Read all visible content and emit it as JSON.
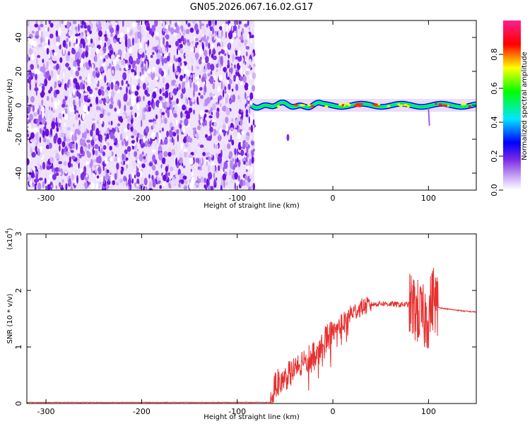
{
  "title": "GN05.2026.067.16.02.G17",
  "colorbar": {
    "label": "Normalized spectral amplitude",
    "ticks": [
      "0.0",
      "0.2",
      "0.4",
      "0.6",
      "0.8"
    ]
  },
  "chart_data": [
    {
      "type": "heatmap",
      "name": "spectrogram",
      "xlabel": "Height of straight line (km)",
      "ylabel": "Frequency (Hz)",
      "xlim": [
        -320,
        150
      ],
      "ylim": [
        -50,
        50
      ],
      "xticks": [
        "-300",
        "-200",
        "-100",
        "0",
        "100"
      ],
      "yticks": [
        "-40",
        "-20",
        "0",
        "20",
        "40"
      ],
      "colorscale": [
        "#ffffff",
        "#8a2be2",
        "#0000ff",
        "#00ffff",
        "#00ff00",
        "#ffff00",
        "#ff0000",
        "#ff1493"
      ],
      "noise_region_x": [
        -320,
        -82
      ],
      "signal_band_center_hz": 0,
      "signal_start_x": -85
    },
    {
      "type": "line",
      "name": "snr",
      "xlabel": "Height of straight line (km)",
      "ylabel": "SNR (10 * v/v)",
      "y_multiplier": "(x10",
      "y_multiplier_exp": "4",
      "line_color": "#e8302f",
      "xlim": [
        -320,
        150
      ],
      "ylim": [
        0,
        3
      ],
      "xticks": [
        "-300",
        "-200",
        "-100",
        "0",
        "100"
      ],
      "yticks": [
        "0",
        "1",
        "2",
        "3"
      ],
      "series": [
        {
          "name": "SNR",
          "x": [
            -320,
            -100,
            -65,
            -60,
            -50,
            -40,
            -30,
            -20,
            -10,
            0,
            10,
            20,
            30,
            40,
            50,
            60,
            70,
            80,
            90,
            95,
            100,
            105,
            110,
            120,
            130,
            140,
            150
          ],
          "y": [
            0.02,
            0.02,
            0.02,
            0.35,
            0.45,
            0.6,
            0.7,
            0.9,
            1.1,
            1.25,
            1.45,
            1.6,
            1.7,
            1.75,
            1.77,
            1.76,
            1.75,
            1.75,
            1.6,
            1.5,
            1.55,
            1.9,
            1.7,
            1.67,
            1.65,
            1.63,
            1.62
          ]
        }
      ]
    }
  ]
}
